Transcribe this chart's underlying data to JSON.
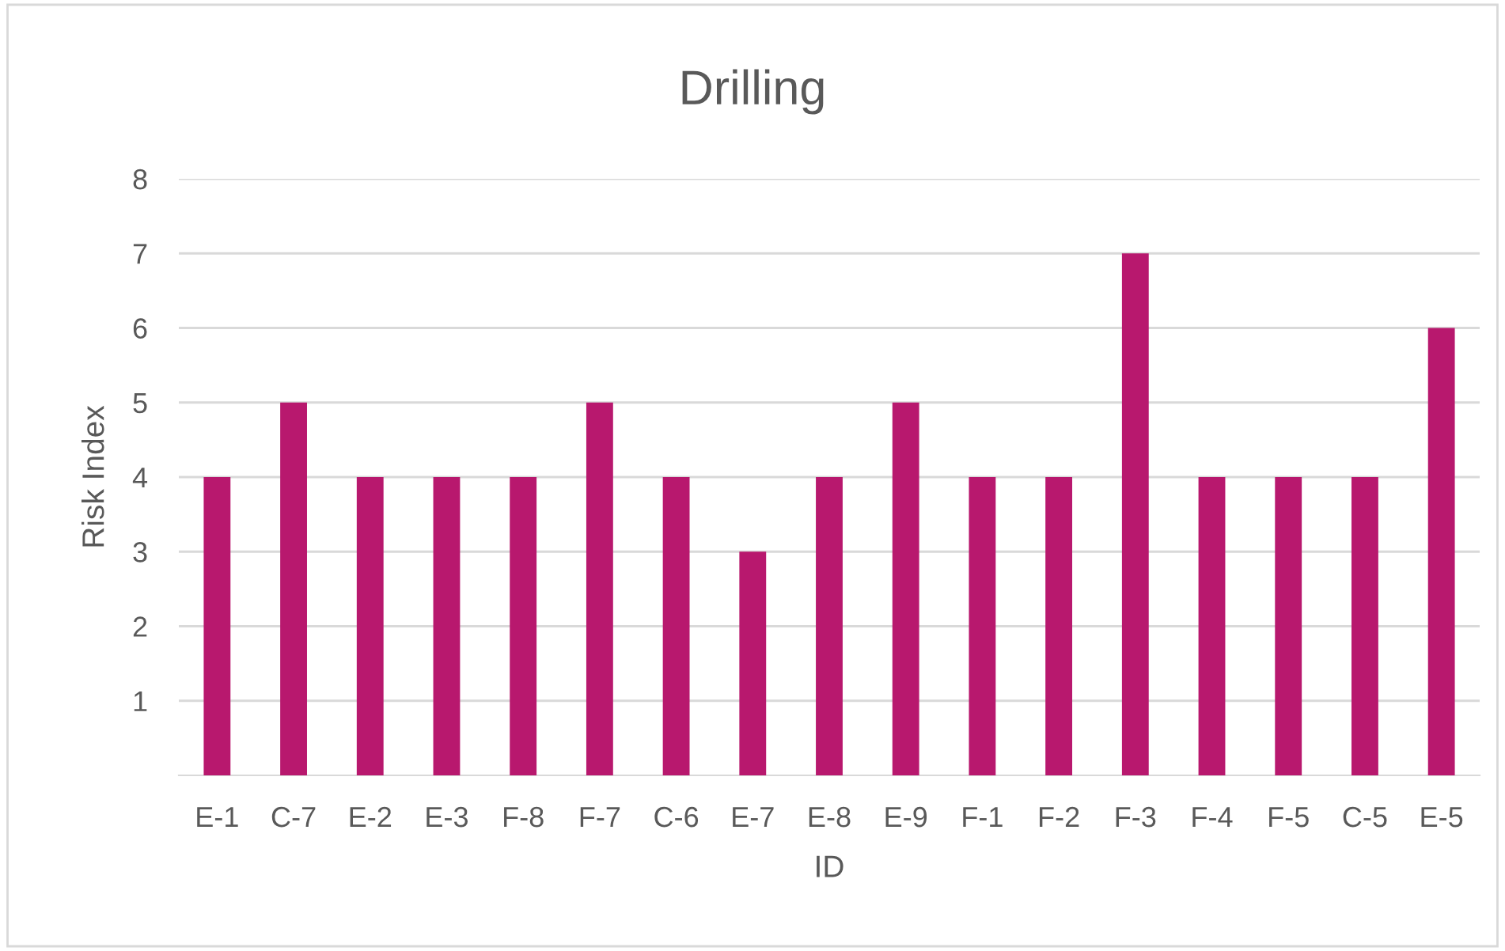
{
  "chart_data": {
    "type": "bar",
    "title": "Drilling",
    "xlabel": "ID",
    "ylabel": "Risk Index",
    "categories": [
      "E-1",
      "C-7",
      "E-2",
      "E-3",
      "F-8",
      "F-7",
      "C-6",
      "E-7",
      "E-8",
      "E-9",
      "F-1",
      "F-2",
      "F-3",
      "F-4",
      "F-5",
      "C-5",
      "E-5"
    ],
    "values": [
      4,
      5,
      4,
      4,
      4,
      5,
      4,
      3,
      4,
      5,
      4,
      4,
      7,
      4,
      4,
      4,
      6
    ],
    "color": "#b8186e",
    "ylim": [
      0,
      8
    ],
    "yticks": [
      1,
      2,
      3,
      4,
      5,
      6,
      7,
      8
    ],
    "grid": "y",
    "legend": false
  }
}
